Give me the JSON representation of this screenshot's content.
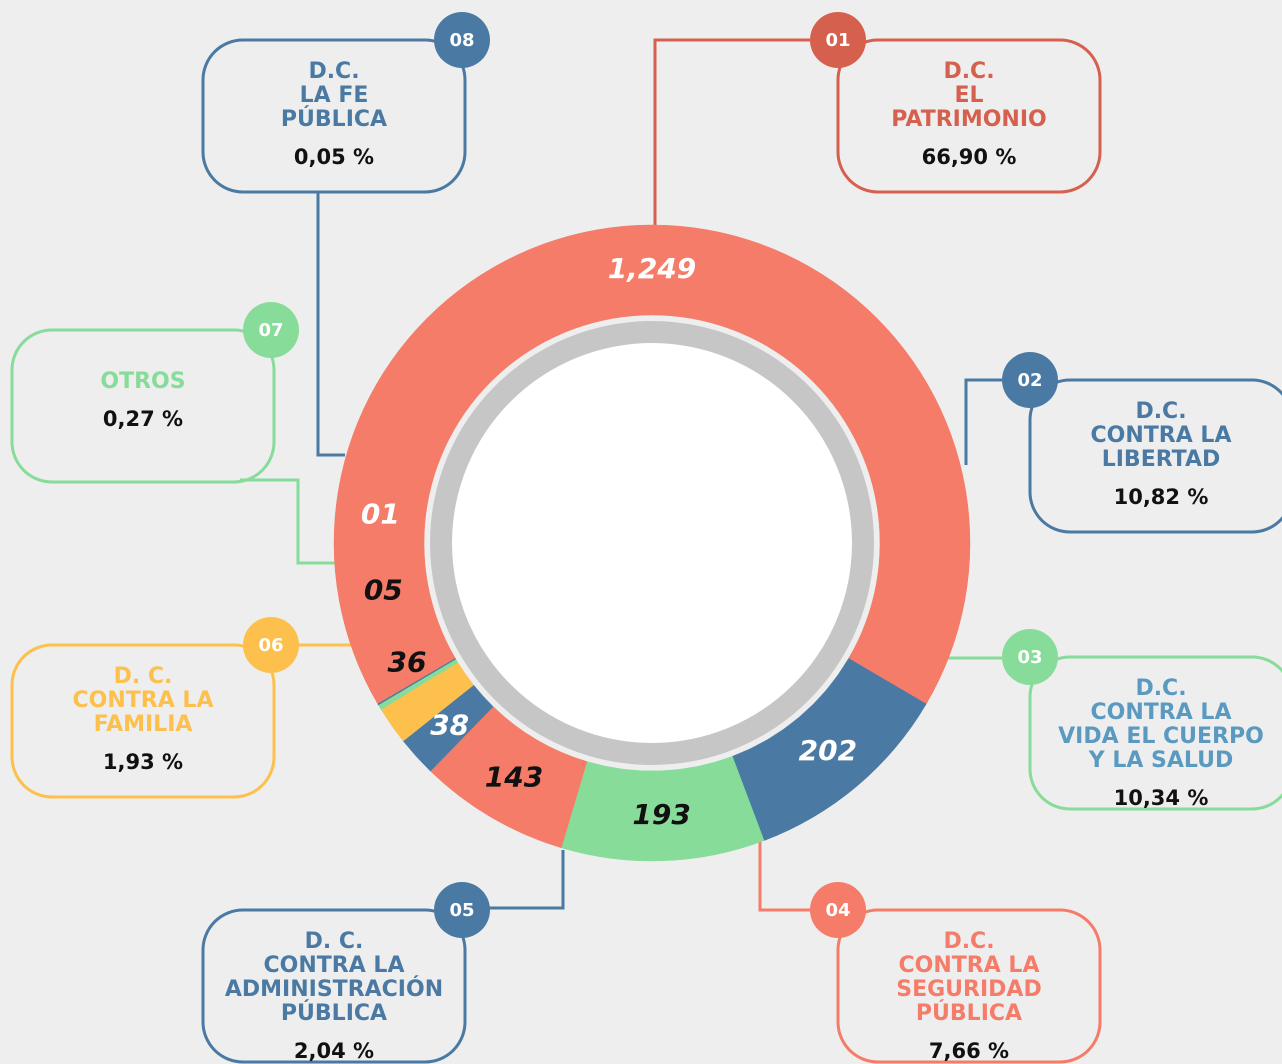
{
  "chart_data": {
    "type": "donut",
    "values": [
      1249,
      202,
      193,
      143,
      38,
      36,
      5,
      1
    ],
    "value_labels": [
      "1,249",
      "202",
      "193",
      "143",
      "38",
      "36",
      "05",
      "01"
    ],
    "colors": [
      "#f47c68",
      "#4a7aa3",
      "#87dc9a",
      "#f47c68",
      "#4a7aa3",
      "#fdc04c",
      "#87dc9a",
      "#4a7aa3"
    ],
    "label_colors": [
      "#ffffff",
      "#ffffff",
      "#111111",
      "#111111",
      "#ffffff",
      "#111111",
      "#111111",
      "#ffffff"
    ],
    "callouts": [
      {
        "number": "01",
        "lines": [
          "D.C.",
          "EL",
          "PATRIMONIO"
        ],
        "percent": 66.9,
        "percent_label": "66,90 %",
        "color": "#d6604e"
      },
      {
        "number": "02",
        "lines": [
          "D.C.",
          "CONTRA LA",
          "LIBERTAD"
        ],
        "percent": 10.82,
        "percent_label": "10,82 %",
        "color": "#4a7aa3"
      },
      {
        "number": "03",
        "lines": [
          "D.C.",
          "CONTRA LA",
          "VIDA EL CUERPO",
          "Y LA SALUD"
        ],
        "percent": 10.34,
        "percent_label": "10,34 %",
        "color": "#87dc9a",
        "text_color": "#5b9ac0"
      },
      {
        "number": "04",
        "lines": [
          "D.C.",
          "CONTRA LA",
          "SEGURIDAD",
          "PÚBLICA"
        ],
        "percent": 7.66,
        "percent_label": "7,66 %",
        "color": "#f47c68"
      },
      {
        "number": "05",
        "lines": [
          "D. C.",
          "CONTRA LA",
          "ADMINISTRACIÓN",
          "PÚBLICA"
        ],
        "percent": 2.04,
        "percent_label": "2,04 %",
        "color": "#4a7aa3"
      },
      {
        "number": "06",
        "lines": [
          "D. C.",
          "CONTRA LA",
          "FAMILIA"
        ],
        "percent": 1.93,
        "percent_label": "1,93 %",
        "color": "#fdc04c"
      },
      {
        "number": "07",
        "lines": [
          "OTROS"
        ],
        "percent": 0.27,
        "percent_label": "0,27 %",
        "color": "#87dc9a"
      },
      {
        "number": "08",
        "lines": [
          "D.C.",
          "LA FE",
          "PÚBLICA"
        ],
        "percent": 0.05,
        "percent_label": "0,05 %",
        "color": "#4a7aa3"
      }
    ]
  }
}
